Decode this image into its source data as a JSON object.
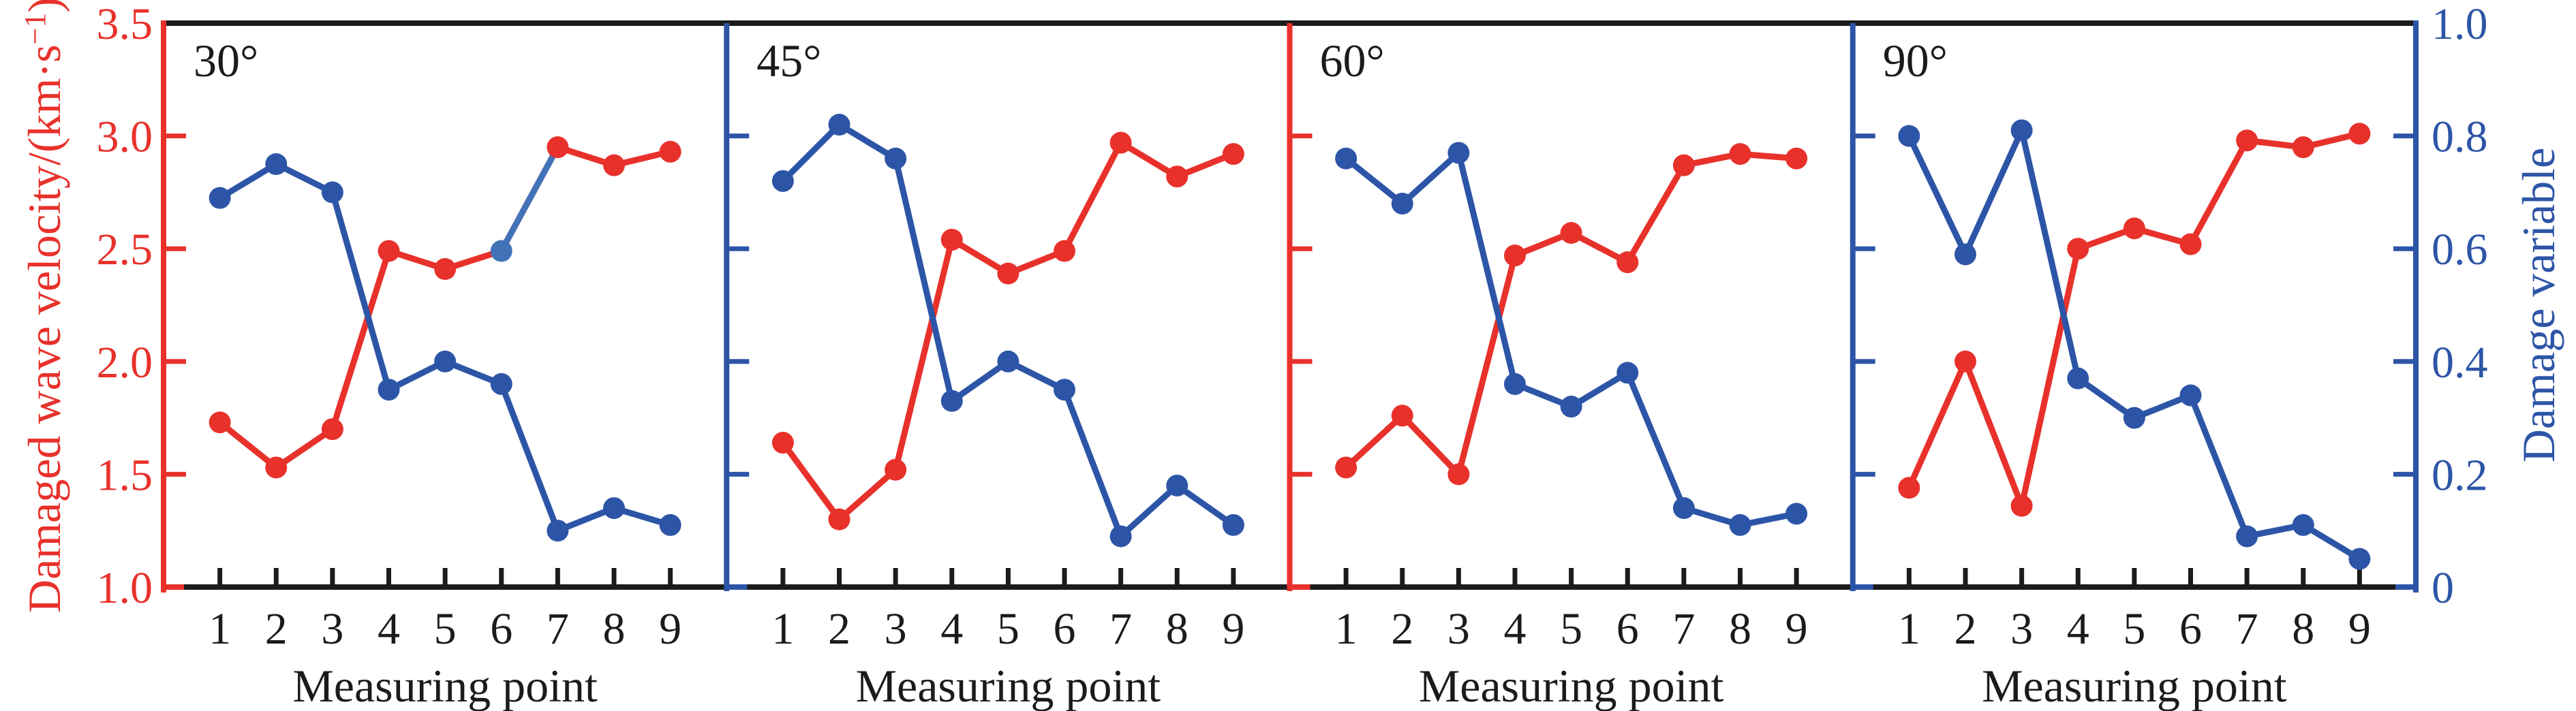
{
  "figure": {
    "background": "#ffffff",
    "left_axis": {
      "label_main": "Damaged wave velocity/(km·s",
      "label_superscript": "−1",
      "label_close": ")",
      "tick_labels": [
        "3.5",
        "3.0",
        "2.5",
        "2.0",
        "1.5",
        "1.0"
      ],
      "color": "#e8312b"
    },
    "right_axis": {
      "label": "Damage variable",
      "tick_labels": [
        "1.0",
        "0.8",
        "0.6",
        "0.4",
        "0.2",
        "0"
      ],
      "color": "#2d55a7"
    },
    "x_axis": {
      "label": "Measuring point",
      "tick_labels": [
        "1",
        "2",
        "3",
        "4",
        "5",
        "6",
        "7",
        "8",
        "9"
      ],
      "color": "#1b1b1b"
    }
  },
  "chart_data": {
    "type": "line",
    "x": [
      1,
      2,
      3,
      4,
      5,
      6,
      7,
      8,
      9
    ],
    "x_label": "Measuring point",
    "left_ylabel": "Damaged wave velocity/(km·s⁻¹)",
    "right_ylabel": "Damage variable",
    "left_ylim": [
      1.0,
      3.5
    ],
    "left_yticks": [
      3.5,
      3.0,
      2.5,
      2.0,
      1.5,
      1.0
    ],
    "right_ylim": [
      0,
      1.0
    ],
    "right_yticks": [
      1.0,
      0.8,
      0.6,
      0.4,
      0.2,
      0
    ],
    "grid": false,
    "legend": "none",
    "series_colors": {
      "velocity": "#e8312b",
      "damage": "#2d55a7"
    },
    "panel_divider_colors": [
      "#2d55a7",
      "#e8312b",
      "#2d55a7"
    ],
    "panels": [
      {
        "label": "30°",
        "velocity": [
          1.73,
          1.53,
          1.7,
          2.49,
          2.41,
          2.49,
          2.95,
          2.87,
          2.93
        ],
        "damage": [
          0.69,
          0.75,
          0.7,
          0.35,
          0.4,
          0.36,
          0.1,
          0.14,
          0.11
        ],
        "blue_colored_velocity_segment": {
          "from_point": 6,
          "to_point": 7,
          "color": "#4273b9"
        }
      },
      {
        "label": "45°",
        "velocity": [
          1.64,
          1.3,
          1.52,
          2.54,
          2.39,
          2.49,
          2.97,
          2.82,
          2.92
        ],
        "damage": [
          0.72,
          0.82,
          0.76,
          0.33,
          0.4,
          0.35,
          0.09,
          0.18,
          0.11
        ]
      },
      {
        "label": "60°",
        "velocity": [
          1.53,
          1.76,
          1.5,
          2.47,
          2.57,
          2.44,
          2.87,
          2.92,
          2.9
        ],
        "damage": [
          0.76,
          0.68,
          0.77,
          0.36,
          0.32,
          0.38,
          0.14,
          0.11,
          0.13
        ]
      },
      {
        "label": "90°",
        "velocity": [
          1.44,
          2.0,
          1.36,
          2.5,
          2.59,
          2.52,
          2.98,
          2.95,
          3.01
        ],
        "damage": [
          0.8,
          0.59,
          0.81,
          0.37,
          0.3,
          0.34,
          0.09,
          0.11,
          0.05
        ]
      }
    ]
  }
}
